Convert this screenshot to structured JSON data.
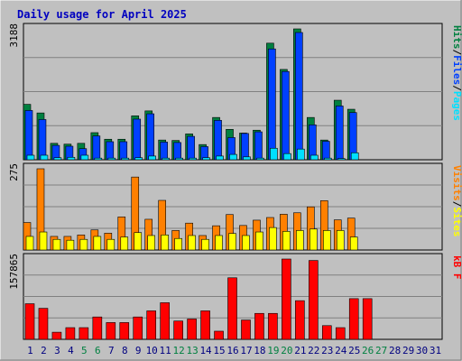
{
  "chart_data": [
    {
      "type": "bar",
      "title": "Daily usage for April 2025",
      "categories": [
        "1",
        "2",
        "3",
        "4",
        "5",
        "6",
        "7",
        "8",
        "9",
        "10",
        "11",
        "12",
        "13",
        "14",
        "15",
        "16",
        "17",
        "18",
        "19",
        "20",
        "21",
        "22",
        "23",
        "24",
        "25",
        "26",
        "27",
        "28",
        "29",
        "30",
        "31"
      ],
      "weekend_days": [
        "5",
        "6",
        "12",
        "13",
        "19",
        "20",
        "26",
        "27"
      ],
      "panels": [
        {
          "name": "hits_files_pages",
          "ymax_label": "3188",
          "ylim": [
            0,
            3188
          ],
          "legend": [
            "Pages",
            "Files",
            "Hits"
          ],
          "series": [
            {
              "name": "Hits",
              "values": [
                1350,
                1140,
                400,
                380,
                400,
                660,
                500,
                500,
                1070,
                1190,
                480,
                470,
                630,
                370,
                1030,
                740,
                650,
                720,
                2840,
                2200,
                3188,
                1030,
                480,
                1450,
                1230,
                0,
                0,
                0,
                0,
                0,
                0
              ]
            },
            {
              "name": "Files",
              "values": [
                1200,
                980,
                350,
                330,
                270,
                580,
                440,
                440,
                990,
                1120,
                430,
                420,
                570,
                320,
                960,
                540,
                640,
                680,
                2700,
                2150,
                3100,
                850,
                450,
                1310,
                1150,
                0,
                0,
                0,
                0,
                0,
                0
              ]
            },
            {
              "name": "Pages",
              "values": [
                110,
                110,
                50,
                60,
                110,
                40,
                40,
                40,
                50,
                90,
                40,
                40,
                40,
                50,
                90,
                130,
                70,
                40,
                280,
                150,
                260,
                110,
                40,
                30,
                170,
                0,
                0,
                0,
                0,
                0,
                0
              ]
            }
          ]
        },
        {
          "name": "visits_sites",
          "ymax_label": "275",
          "ylim": [
            0,
            275
          ],
          "legend": [
            "Sites",
            "Visits"
          ],
          "series": [
            {
              "name": "Visits",
              "values": [
                93,
                275,
                46,
                46,
                51,
                68,
                57,
                112,
                247,
                104,
                168,
                66,
                91,
                49,
                82,
                120,
                83,
                101,
                110,
                121,
                126,
                146,
                167,
                102,
                108,
                0,
                0,
                0,
                0,
                0,
                0
              ]
            },
            {
              "name": "Sites",
              "values": [
                46,
                61,
                36,
                33,
                36,
                46,
                36,
                44,
                59,
                49,
                51,
                39,
                49,
                36,
                49,
                56,
                49,
                61,
                76,
                63,
                66,
                71,
                66,
                66,
                44,
                0,
                0,
                0,
                0,
                0,
                0
              ]
            }
          ]
        },
        {
          "name": "kbytes",
          "ymax_label": "157865",
          "ylim": [
            0,
            157865
          ],
          "legend": [
            "kB F"
          ],
          "series": [
            {
              "name": "kB F",
              "values": [
                70000,
                61000,
                14000,
                23000,
                23000,
                44000,
                33000,
                33000,
                44000,
                56000,
                72000,
                36000,
                40000,
                56000,
                16000,
                121000,
                38000,
                51000,
                51000,
                157865,
                76000,
                155000,
                27000,
                23000,
                80000,
                80000,
                0,
                0,
                0,
                0,
                0
              ]
            }
          ]
        }
      ]
    }
  ],
  "colors": {
    "background": "#c0c0c0",
    "plot": "#c0c0c0",
    "grid": "#808080",
    "title": "#0000c0",
    "axis_label": "#000000",
    "weekday": "#000080",
    "weekend": "#008040",
    "hits": "#008040",
    "files": "#0040ff",
    "pages": "#00e0ff",
    "visits": "#ff8000",
    "sites": "#ffff00",
    "kbytes": "#ff0000"
  }
}
